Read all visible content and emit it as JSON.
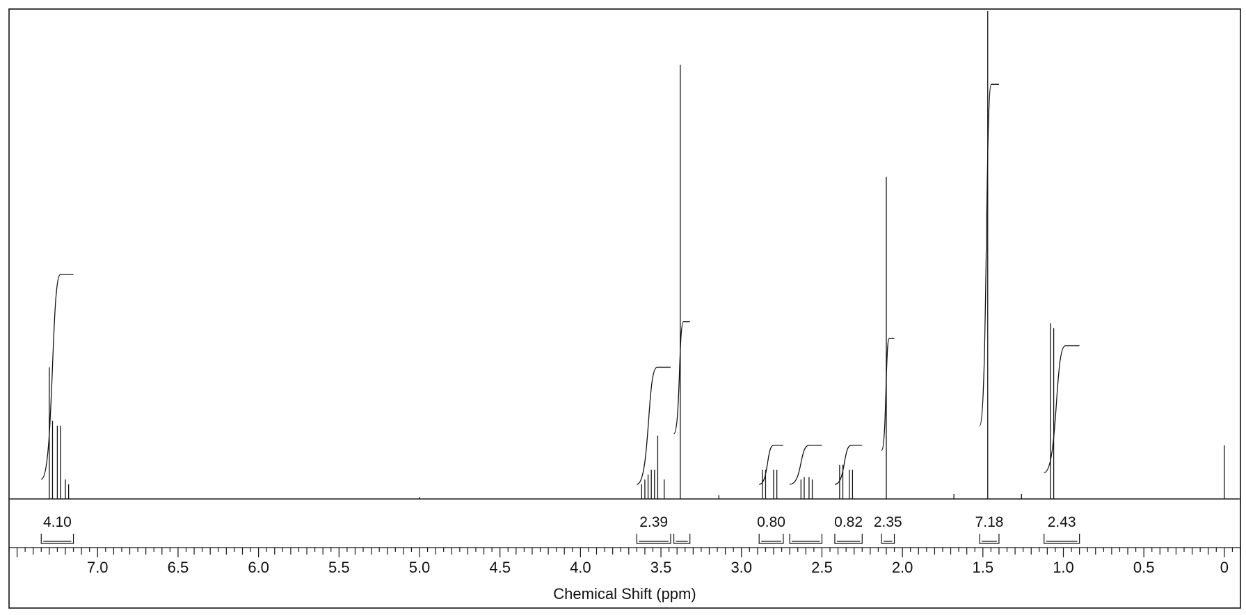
{
  "chart_data": {
    "type": "line",
    "title": "",
    "xlabel": "Chemical Shift (ppm)",
    "ylabel": "",
    "xlim": [
      7.55,
      -0.1
    ],
    "x_reversed": true,
    "xticks": [
      7.0,
      6.5,
      6.0,
      5.5,
      5.0,
      4.5,
      4.0,
      3.5,
      3.0,
      2.5,
      2.0,
      1.5,
      1.0,
      0.5,
      0
    ],
    "xtick_labels": [
      "7.0",
      "6.5",
      "6.0",
      "5.5",
      "5.0",
      "4.5",
      "4.0",
      "3.5",
      "3.0",
      "2.5",
      "2.0",
      "1.5",
      "1.0",
      "0.5",
      "0"
    ],
    "grid": false,
    "peaks": [
      {
        "ppm": 7.3,
        "height": 0.27
      },
      {
        "ppm": 7.28,
        "height": 0.16
      },
      {
        "ppm": 7.25,
        "height": 0.15
      },
      {
        "ppm": 7.23,
        "height": 0.15
      },
      {
        "ppm": 7.2,
        "height": 0.04
      },
      {
        "ppm": 7.18,
        "height": 0.03
      },
      {
        "ppm": 3.62,
        "height": 0.03
      },
      {
        "ppm": 3.6,
        "height": 0.04
      },
      {
        "ppm": 3.58,
        "height": 0.05
      },
      {
        "ppm": 3.56,
        "height": 0.06
      },
      {
        "ppm": 3.54,
        "height": 0.06
      },
      {
        "ppm": 3.52,
        "height": 0.13
      },
      {
        "ppm": 3.48,
        "height": 0.04
      },
      {
        "ppm": 3.38,
        "height": 0.89
      },
      {
        "ppm": 2.87,
        "height": 0.06
      },
      {
        "ppm": 2.85,
        "height": 0.06
      },
      {
        "ppm": 2.8,
        "height": 0.06
      },
      {
        "ppm": 2.78,
        "height": 0.06
      },
      {
        "ppm": 2.63,
        "height": 0.04
      },
      {
        "ppm": 2.61,
        "height": 0.045
      },
      {
        "ppm": 2.58,
        "height": 0.045
      },
      {
        "ppm": 2.56,
        "height": 0.04
      },
      {
        "ppm": 2.39,
        "height": 0.07
      },
      {
        "ppm": 2.37,
        "height": 0.07
      },
      {
        "ppm": 2.33,
        "height": 0.06
      },
      {
        "ppm": 2.31,
        "height": 0.06
      },
      {
        "ppm": 2.1,
        "height": 0.66
      },
      {
        "ppm": 1.47,
        "height": 1.0
      },
      {
        "ppm": 1.08,
        "height": 0.36
      },
      {
        "ppm": 1.06,
        "height": 0.35
      },
      {
        "ppm": 1.26,
        "height": 0.01
      },
      {
        "ppm": 1.68,
        "height": 0.01
      },
      {
        "ppm": 3.14,
        "height": 0.008
      },
      {
        "ppm": 5.0,
        "height": 0.004
      },
      {
        "ppm": 0.0,
        "height": 0.11
      }
    ],
    "integrals": [
      {
        "label": "4.10",
        "from": 7.35,
        "to": 7.15,
        "rise": 0.42
      },
      {
        "label": "2.39",
        "from": 3.65,
        "to": 3.44,
        "rise": 0.24
      },
      {
        "label": "",
        "from": 3.42,
        "to": 3.32,
        "rise": 0.23
      },
      {
        "label": "0.80",
        "from": 2.89,
        "to": 2.74,
        "rise": 0.08
      },
      {
        "label": "",
        "from": 2.7,
        "to": 2.5,
        "rise": 0.08
      },
      {
        "label": "0.82",
        "from": 2.42,
        "to": 2.25,
        "rise": 0.08
      },
      {
        "label": "2.35",
        "from": 2.13,
        "to": 2.05,
        "rise": 0.23
      },
      {
        "label": "7.18",
        "from": 1.52,
        "to": 1.4,
        "rise": 0.7
      },
      {
        "label": "2.43",
        "from": 1.12,
        "to": 0.9,
        "rise": 0.26
      }
    ]
  }
}
